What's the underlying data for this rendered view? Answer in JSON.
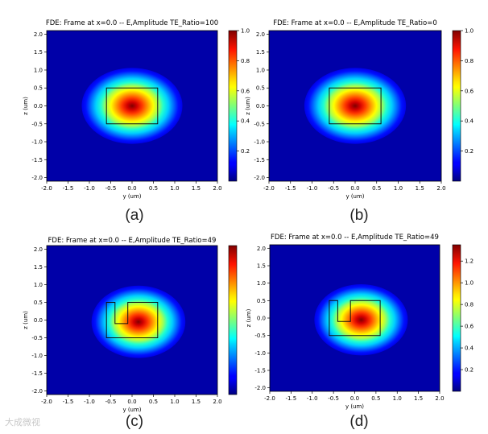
{
  "chart_data": [
    {
      "type": "heatmap",
      "title": "FDE: Frame at x=0.0 -- E,Amplitude TE_Ratio=100",
      "xlabel": "y (um)",
      "ylabel": "z (um)",
      "xlim": [
        -2.0,
        2.0
      ],
      "ylim": [
        -2.1,
        2.1
      ],
      "x_ticks": [
        "-2.0",
        "-1.5",
        "-1.0",
        "-0.5",
        "0.0",
        "0.5",
        "1.0",
        "1.5",
        "2.0"
      ],
      "y_ticks": [
        "2.0",
        "1.5",
        "1.0",
        "0.5",
        "0.0",
        "-0.5",
        "-1.0",
        "-1.5",
        "-2.0"
      ],
      "colorbar": {
        "min": 0,
        "max": 1.0,
        "ticks": [
          "1.0",
          "0.8",
          "0.6",
          "0.4",
          "0.2"
        ]
      },
      "field_peak": {
        "y": 0.0,
        "z": 0.0,
        "value": 1.0
      },
      "waveguide_outline": {
        "shape": "rectangle",
        "y_range": [
          -0.6,
          0.6
        ],
        "z_range": [
          -0.5,
          0.5
        ]
      },
      "caption": "(a)"
    },
    {
      "type": "heatmap",
      "title": "FDE: Frame at x=0.0 -- E,Amplitude TE_Ratio=0",
      "xlabel": "y (um)",
      "ylabel": "z (um)",
      "xlim": [
        -2.0,
        2.0
      ],
      "ylim": [
        -2.1,
        2.1
      ],
      "x_ticks": [
        "-2.0",
        "-1.5",
        "-1.0",
        "-0.5",
        "0.0",
        "0.5",
        "1.0",
        "1.5",
        "2.0"
      ],
      "y_ticks": [
        "2.0",
        "1.5",
        "1.0",
        "0.5",
        "0.0",
        "-0.5",
        "-1.0",
        "-1.5",
        "-2.0"
      ],
      "colorbar": {
        "min": 0,
        "max": 1.0,
        "ticks": [
          "1.0",
          "0.8",
          "0.6",
          "0.4",
          "0.2"
        ]
      },
      "field_peak": {
        "y": 0.0,
        "z": 0.0,
        "value": 1.0
      },
      "waveguide_outline": {
        "shape": "rectangle",
        "y_range": [
          -0.6,
          0.6
        ],
        "z_range": [
          -0.5,
          0.5
        ]
      },
      "caption": "(b)"
    },
    {
      "type": "heatmap",
      "title": "FDE: Frame at x=0.0 -- E,Amplitude TE_Ratio=49",
      "xlabel": "y (um)",
      "ylabel": "z (um)",
      "xlim": [
        -2.0,
        2.0
      ],
      "ylim": [
        -2.1,
        2.1
      ],
      "x_ticks": [
        "-2.0",
        "-1.5",
        "-1.0",
        "-0.5",
        "0.0",
        "0.5",
        "1.0",
        "1.5",
        "2.0"
      ],
      "y_ticks": [
        "2.0",
        "1.5",
        "1.0",
        "0.5",
        "0.0",
        "-0.5",
        "-1.0",
        "-1.5",
        "-2.0"
      ],
      "colorbar": {
        "min": 0,
        "max": 1.35,
        "ticks": []
      },
      "field_peak": {
        "y": 0.15,
        "z": -0.05,
        "value": 1.35
      },
      "waveguide_outline": {
        "shape": "notched",
        "points": [
          [
            -0.6,
            0.5
          ],
          [
            -0.4,
            0.5
          ],
          [
            -0.4,
            -0.1
          ],
          [
            -0.1,
            -0.1
          ],
          [
            -0.1,
            0.5
          ],
          [
            0.6,
            0.5
          ],
          [
            0.6,
            -0.5
          ],
          [
            -0.6,
            -0.5
          ]
        ]
      },
      "caption": "(c)"
    },
    {
      "type": "heatmap",
      "title": "FDE: Frame at x=0.0 -- E,Amplitude TE_Ratio=49",
      "xlabel": "y (um)",
      "ylabel": "z (um)",
      "xlim": [
        -2.0,
        2.0
      ],
      "ylim": [
        -2.1,
        2.1
      ],
      "x_ticks": [
        "-2.0",
        "-1.5",
        "-1.0",
        "-0.5",
        "0.0",
        "0.5",
        "1.0",
        "1.5",
        "2.0"
      ],
      "y_ticks": [
        "2.0",
        "1.5",
        "1.0",
        "0.5",
        "0.0",
        "-0.5",
        "-1.0",
        "-1.5",
        "-2.0"
      ],
      "colorbar": {
        "min": 0,
        "max": 1.35,
        "ticks": [
          "1.2",
          "1.0",
          "0.8",
          "0.6",
          "0.4",
          "0.2"
        ]
      },
      "field_peak": {
        "y": 0.15,
        "z": -0.05,
        "value": 1.35
      },
      "waveguide_outline": {
        "shape": "notched",
        "points": [
          [
            -0.6,
            0.5
          ],
          [
            -0.4,
            0.5
          ],
          [
            -0.4,
            -0.1
          ],
          [
            -0.1,
            -0.1
          ],
          [
            -0.1,
            0.5
          ],
          [
            0.6,
            0.5
          ],
          [
            0.6,
            -0.5
          ],
          [
            -0.6,
            -0.5
          ]
        ]
      },
      "caption": "(d)"
    }
  ],
  "watermark": "大成微视"
}
